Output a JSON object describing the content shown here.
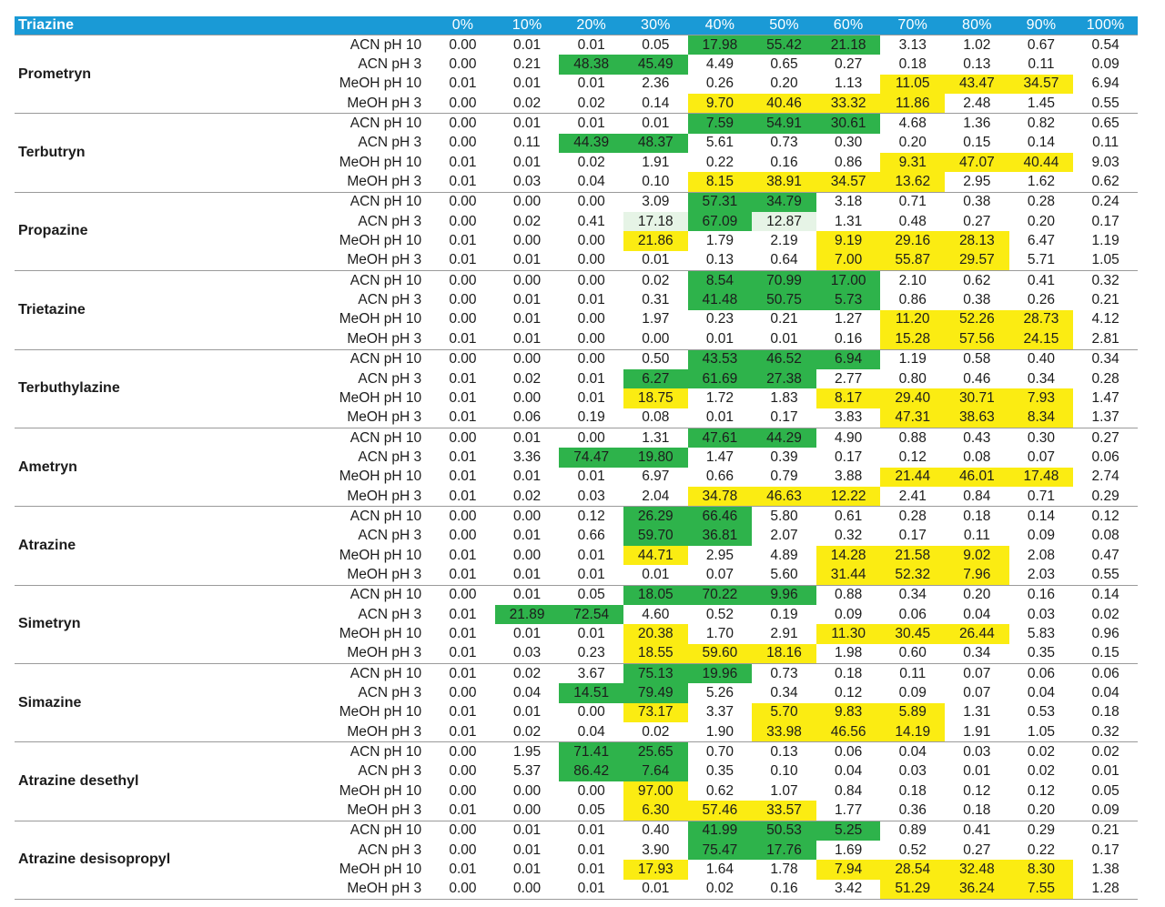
{
  "header": {
    "title": "Triazine",
    "columns": [
      "0%",
      "10%",
      "20%",
      "30%",
      "40%",
      "50%",
      "60%",
      "70%",
      "80%",
      "90%",
      "100%"
    ]
  },
  "colors": {
    "green": "#2eb34b",
    "yellow": "#fbec12",
    "lightgreen": "#e6f4e6",
    "header": "#1a9ad6"
  },
  "compounds": [
    {
      "name": "Prometryn",
      "rows": [
        {
          "cond": "ACN pH 10",
          "vals": [
            "0.00",
            "0.01",
            "0.01",
            "0.05",
            "17.98",
            "55.42",
            "21.18",
            "3.13",
            "1.02",
            "0.67",
            "0.54"
          ],
          "hl": "----ggg----"
        },
        {
          "cond": "ACN pH 3",
          "vals": [
            "0.00",
            "0.21",
            "48.38",
            "45.49",
            "4.49",
            "0.65",
            "0.27",
            "0.18",
            "0.13",
            "0.11",
            "0.09"
          ],
          "hl": "--gg-------"
        },
        {
          "cond": "MeOH pH 10",
          "vals": [
            "0.01",
            "0.01",
            "0.01",
            "2.36",
            "0.26",
            "0.20",
            "1.13",
            "11.05",
            "43.47",
            "34.57",
            "6.94"
          ],
          "hl": "-------yyy-"
        },
        {
          "cond": "MeOH pH 3",
          "vals": [
            "0.00",
            "0.02",
            "0.02",
            "0.14",
            "9.70",
            "40.46",
            "33.32",
            "11.86",
            "2.48",
            "1.45",
            "0.55"
          ],
          "hl": "----yyyy---"
        }
      ]
    },
    {
      "name": "Terbutryn",
      "rows": [
        {
          "cond": "ACN pH 10",
          "vals": [
            "0.00",
            "0.01",
            "0.01",
            "0.01",
            "7.59",
            "54.91",
            "30.61",
            "4.68",
            "1.36",
            "0.82",
            "0.65"
          ],
          "hl": "----ggg----"
        },
        {
          "cond": "ACN pH 3",
          "vals": [
            "0.00",
            "0.11",
            "44.39",
            "48.37",
            "5.61",
            "0.73",
            "0.30",
            "0.20",
            "0.15",
            "0.14",
            "0.11"
          ],
          "hl": "--gg-------"
        },
        {
          "cond": "MeOH pH 10",
          "vals": [
            "0.01",
            "0.01",
            "0.02",
            "1.91",
            "0.22",
            "0.16",
            "0.86",
            "9.31",
            "47.07",
            "40.44",
            "9.03"
          ],
          "hl": "-------yyy-"
        },
        {
          "cond": "MeOH pH 3",
          "vals": [
            "0.01",
            "0.03",
            "0.04",
            "0.10",
            "8.15",
            "38.91",
            "34.57",
            "13.62",
            "2.95",
            "1.62",
            "0.62"
          ],
          "hl": "----yyyy---"
        }
      ]
    },
    {
      "name": "Propazine",
      "rows": [
        {
          "cond": "ACN pH 10",
          "vals": [
            "0.00",
            "0.00",
            "0.00",
            "3.09",
            "57.31",
            "34.79",
            "3.18",
            "0.71",
            "0.38",
            "0.28",
            "0.24"
          ],
          "hl": "----gg-----"
        },
        {
          "cond": "ACN pH 3",
          "vals": [
            "0.00",
            "0.02",
            "0.41",
            "17.18",
            "67.09",
            "12.87",
            "1.31",
            "0.48",
            "0.27",
            "0.20",
            "0.17"
          ],
          "hl": "---lgl-----"
        },
        {
          "cond": "MeOH pH 10",
          "vals": [
            "0.01",
            "0.00",
            "0.00",
            "21.86",
            "1.79",
            "2.19",
            "9.19",
            "29.16",
            "28.13",
            "6.47",
            "1.19"
          ],
          "hl": "---y--yyy--"
        },
        {
          "cond": "MeOH pH 3",
          "vals": [
            "0.01",
            "0.01",
            "0.00",
            "0.01",
            "0.13",
            "0.64",
            "7.00",
            "55.87",
            "29.57",
            "5.71",
            "1.05"
          ],
          "hl": "------yyy--"
        }
      ]
    },
    {
      "name": "Trietazine",
      "rows": [
        {
          "cond": "ACN pH 10",
          "vals": [
            "0.00",
            "0.00",
            "0.00",
            "0.02",
            "8.54",
            "70.99",
            "17.00",
            "2.10",
            "0.62",
            "0.41",
            "0.32"
          ],
          "hl": "----ggg----"
        },
        {
          "cond": "ACN pH 3",
          "vals": [
            "0.00",
            "0.01",
            "0.01",
            "0.31",
            "41.48",
            "50.75",
            "5.73",
            "0.86",
            "0.38",
            "0.26",
            "0.21"
          ],
          "hl": "----ggg----"
        },
        {
          "cond": "MeOH pH 10",
          "vals": [
            "0.00",
            "0.01",
            "0.00",
            "1.97",
            "0.23",
            "0.21",
            "1.27",
            "11.20",
            "52.26",
            "28.73",
            "4.12"
          ],
          "hl": "-------yyy-"
        },
        {
          "cond": "MeOH pH 3",
          "vals": [
            "0.01",
            "0.01",
            "0.00",
            "0.00",
            "0.01",
            "0.01",
            "0.16",
            "15.28",
            "57.56",
            "24.15",
            "2.81"
          ],
          "hl": "-------yyy-"
        }
      ]
    },
    {
      "name": "Terbuthylazine",
      "rows": [
        {
          "cond": "ACN pH 10",
          "vals": [
            "0.00",
            "0.00",
            "0.00",
            "0.50",
            "43.53",
            "46.52",
            "6.94",
            "1.19",
            "0.58",
            "0.40",
            "0.34"
          ],
          "hl": "----ggg----"
        },
        {
          "cond": "ACN pH 3",
          "vals": [
            "0.01",
            "0.02",
            "0.01",
            "6.27",
            "61.69",
            "27.38",
            "2.77",
            "0.80",
            "0.46",
            "0.34",
            "0.28"
          ],
          "hl": "---ggg-----"
        },
        {
          "cond": "MeOH pH 10",
          "vals": [
            "0.01",
            "0.00",
            "0.01",
            "18.75",
            "1.72",
            "1.83",
            "8.17",
            "29.40",
            "30.71",
            "7.93",
            "1.47"
          ],
          "hl": "---y--yyyy-"
        },
        {
          "cond": "MeOH pH 3",
          "vals": [
            "0.01",
            "0.06",
            "0.19",
            "0.08",
            "0.01",
            "0.17",
            "3.83",
            "47.31",
            "38.63",
            "8.34",
            "1.37"
          ],
          "hl": "-------yyy-"
        }
      ]
    },
    {
      "name": "Ametryn",
      "rows": [
        {
          "cond": "ACN pH 10",
          "vals": [
            "0.00",
            "0.01",
            "0.00",
            "1.31",
            "47.61",
            "44.29",
            "4.90",
            "0.88",
            "0.43",
            "0.30",
            "0.27"
          ],
          "hl": "----gg-----"
        },
        {
          "cond": "ACN pH 3",
          "vals": [
            "0.01",
            "3.36",
            "74.47",
            "19.80",
            "1.47",
            "0.39",
            "0.17",
            "0.12",
            "0.08",
            "0.07",
            "0.06"
          ],
          "hl": "--gg-------"
        },
        {
          "cond": "MeOH pH 10",
          "vals": [
            "0.01",
            "0.01",
            "0.01",
            "6.97",
            "0.66",
            "0.79",
            "3.88",
            "21.44",
            "46.01",
            "17.48",
            "2.74"
          ],
          "hl": "-------yyy-"
        },
        {
          "cond": "MeOH pH 3",
          "vals": [
            "0.01",
            "0.02",
            "0.03",
            "2.04",
            "34.78",
            "46.63",
            "12.22",
            "2.41",
            "0.84",
            "0.71",
            "0.29"
          ],
          "hl": "----yyy----"
        }
      ]
    },
    {
      "name": "Atrazine",
      "rows": [
        {
          "cond": "ACN pH 10",
          "vals": [
            "0.00",
            "0.00",
            "0.12",
            "26.29",
            "66.46",
            "5.80",
            "0.61",
            "0.28",
            "0.18",
            "0.14",
            "0.12"
          ],
          "hl": "---gg------"
        },
        {
          "cond": "ACN pH 3",
          "vals": [
            "0.00",
            "0.01",
            "0.66",
            "59.70",
            "36.81",
            "2.07",
            "0.32",
            "0.17",
            "0.11",
            "0.09",
            "0.08"
          ],
          "hl": "---gg------"
        },
        {
          "cond": "MeOH pH 10",
          "vals": [
            "0.01",
            "0.00",
            "0.01",
            "44.71",
            "2.95",
            "4.89",
            "14.28",
            "21.58",
            "9.02",
            "2.08",
            "0.47"
          ],
          "hl": "---y--yyy--"
        },
        {
          "cond": "MeOH pH 3",
          "vals": [
            "0.01",
            "0.01",
            "0.01",
            "0.01",
            "0.07",
            "5.60",
            "31.44",
            "52.32",
            "7.96",
            "2.03",
            "0.55"
          ],
          "hl": "------yyy--"
        }
      ]
    },
    {
      "name": "Simetryn",
      "rows": [
        {
          "cond": "ACN pH 10",
          "vals": [
            "0.00",
            "0.01",
            "0.05",
            "18.05",
            "70.22",
            "9.96",
            "0.88",
            "0.34",
            "0.20",
            "0.16",
            "0.14"
          ],
          "hl": "---ggg-----"
        },
        {
          "cond": "ACN pH 3",
          "vals": [
            "0.01",
            "21.89",
            "72.54",
            "4.60",
            "0.52",
            "0.19",
            "0.09",
            "0.06",
            "0.04",
            "0.03",
            "0.02"
          ],
          "hl": "-gg--------"
        },
        {
          "cond": "MeOH pH 10",
          "vals": [
            "0.01",
            "0.01",
            "0.01",
            "20.38",
            "1.70",
            "2.91",
            "11.30",
            "30.45",
            "26.44",
            "5.83",
            "0.96"
          ],
          "hl": "---y--yyy--"
        },
        {
          "cond": "MeOH pH 3",
          "vals": [
            "0.01",
            "0.03",
            "0.23",
            "18.55",
            "59.60",
            "18.16",
            "1.98",
            "0.60",
            "0.34",
            "0.35",
            "0.15"
          ],
          "hl": "---yyy-----"
        }
      ]
    },
    {
      "name": "Simazine",
      "rows": [
        {
          "cond": "ACN pH 10",
          "vals": [
            "0.01",
            "0.02",
            "3.67",
            "75.13",
            "19.96",
            "0.73",
            "0.18",
            "0.11",
            "0.07",
            "0.06",
            "0.06"
          ],
          "hl": "---gg------"
        },
        {
          "cond": "ACN pH 3",
          "vals": [
            "0.00",
            "0.04",
            "14.51",
            "79.49",
            "5.26",
            "0.34",
            "0.12",
            "0.09",
            "0.07",
            "0.04",
            "0.04"
          ],
          "hl": "--gg-------"
        },
        {
          "cond": "MeOH pH 10",
          "vals": [
            "0.01",
            "0.01",
            "0.00",
            "73.17",
            "3.37",
            "5.70",
            "9.83",
            "5.89",
            "1.31",
            "0.53",
            "0.18"
          ],
          "hl": "---y-yyy---"
        },
        {
          "cond": "MeOH pH 3",
          "vals": [
            "0.01",
            "0.02",
            "0.04",
            "0.02",
            "1.90",
            "33.98",
            "46.56",
            "14.19",
            "1.91",
            "1.05",
            "0.32"
          ],
          "hl": "-----yyy---"
        }
      ]
    },
    {
      "name": "Atrazine desethyl",
      "rows": [
        {
          "cond": "ACN pH 10",
          "vals": [
            "0.00",
            "1.95",
            "71.41",
            "25.65",
            "0.70",
            "0.13",
            "0.06",
            "0.04",
            "0.03",
            "0.02",
            "0.02"
          ],
          "hl": "--gg-------"
        },
        {
          "cond": "ACN pH 3",
          "vals": [
            "0.00",
            "5.37",
            "86.42",
            "7.64",
            "0.35",
            "0.10",
            "0.04",
            "0.03",
            "0.01",
            "0.02",
            "0.01"
          ],
          "hl": "--gg-------"
        },
        {
          "cond": "MeOH pH 10",
          "vals": [
            "0.00",
            "0.00",
            "0.00",
            "97.00",
            "0.62",
            "1.07",
            "0.84",
            "0.18",
            "0.12",
            "0.12",
            "0.05"
          ],
          "hl": "---y-------"
        },
        {
          "cond": "MeOH pH 3",
          "vals": [
            "0.01",
            "0.00",
            "0.05",
            "6.30",
            "57.46",
            "33.57",
            "1.77",
            "0.36",
            "0.18",
            "0.20",
            "0.09"
          ],
          "hl": "---yyy-----"
        }
      ]
    },
    {
      "name": "Atrazine desisopropyl",
      "rows": [
        {
          "cond": "ACN pH 10",
          "vals": [
            "0.00",
            "0.01",
            "0.01",
            "0.40",
            "41.99",
            "50.53",
            "5.25",
            "0.89",
            "0.41",
            "0.29",
            "0.21"
          ],
          "hl": "----ggg----"
        },
        {
          "cond": "ACN pH 3",
          "vals": [
            "0.00",
            "0.01",
            "0.01",
            "3.90",
            "75.47",
            "17.76",
            "1.69",
            "0.52",
            "0.27",
            "0.22",
            "0.17"
          ],
          "hl": "----gg-----"
        },
        {
          "cond": "MeOH pH 10",
          "vals": [
            "0.01",
            "0.01",
            "0.01",
            "17.93",
            "1.64",
            "1.78",
            "7.94",
            "28.54",
            "32.48",
            "8.30",
            "1.38"
          ],
          "hl": "---y--yyyy-"
        },
        {
          "cond": "MeOH pH 3",
          "vals": [
            "0.00",
            "0.00",
            "0.01",
            "0.01",
            "0.02",
            "0.16",
            "3.42",
            "51.29",
            "36.24",
            "7.55",
            "1.28"
          ],
          "hl": "-------yyy-"
        }
      ]
    }
  ]
}
